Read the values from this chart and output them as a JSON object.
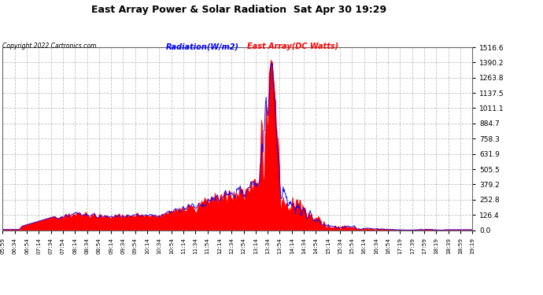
{
  "title": "East Array Power & Solar Radiation  Sat Apr 30 19:29",
  "copyright": "Copyright 2022 Cartronics.com",
  "legend_radiation": "Radiation(W/m2)",
  "legend_east": "East Array(DC Watts)",
  "legend_radiation_color": "blue",
  "legend_east_color": "red",
  "ylabel_right_ticks": [
    0.0,
    126.4,
    252.8,
    379.2,
    505.5,
    631.9,
    758.3,
    884.7,
    1011.1,
    1137.5,
    1263.8,
    1390.2,
    1516.6
  ],
  "ymax": 1516.6,
  "bg_color": "#ffffff",
  "plot_bg_color": "#ffffff",
  "grid_color": "#cccccc",
  "x_tick_labels": [
    "05:59",
    "06:34",
    "06:54",
    "07:14",
    "07:34",
    "07:54",
    "08:14",
    "08:34",
    "08:54",
    "09:14",
    "09:34",
    "09:54",
    "10:14",
    "10:34",
    "10:54",
    "11:14",
    "11:34",
    "11:54",
    "12:14",
    "12:34",
    "12:54",
    "13:14",
    "13:34",
    "13:54",
    "14:14",
    "14:34",
    "14:54",
    "15:14",
    "15:34",
    "15:54",
    "16:14",
    "16:34",
    "16:54",
    "17:19",
    "17:39",
    "17:59",
    "18:19",
    "18:39",
    "18:59",
    "19:19"
  ]
}
